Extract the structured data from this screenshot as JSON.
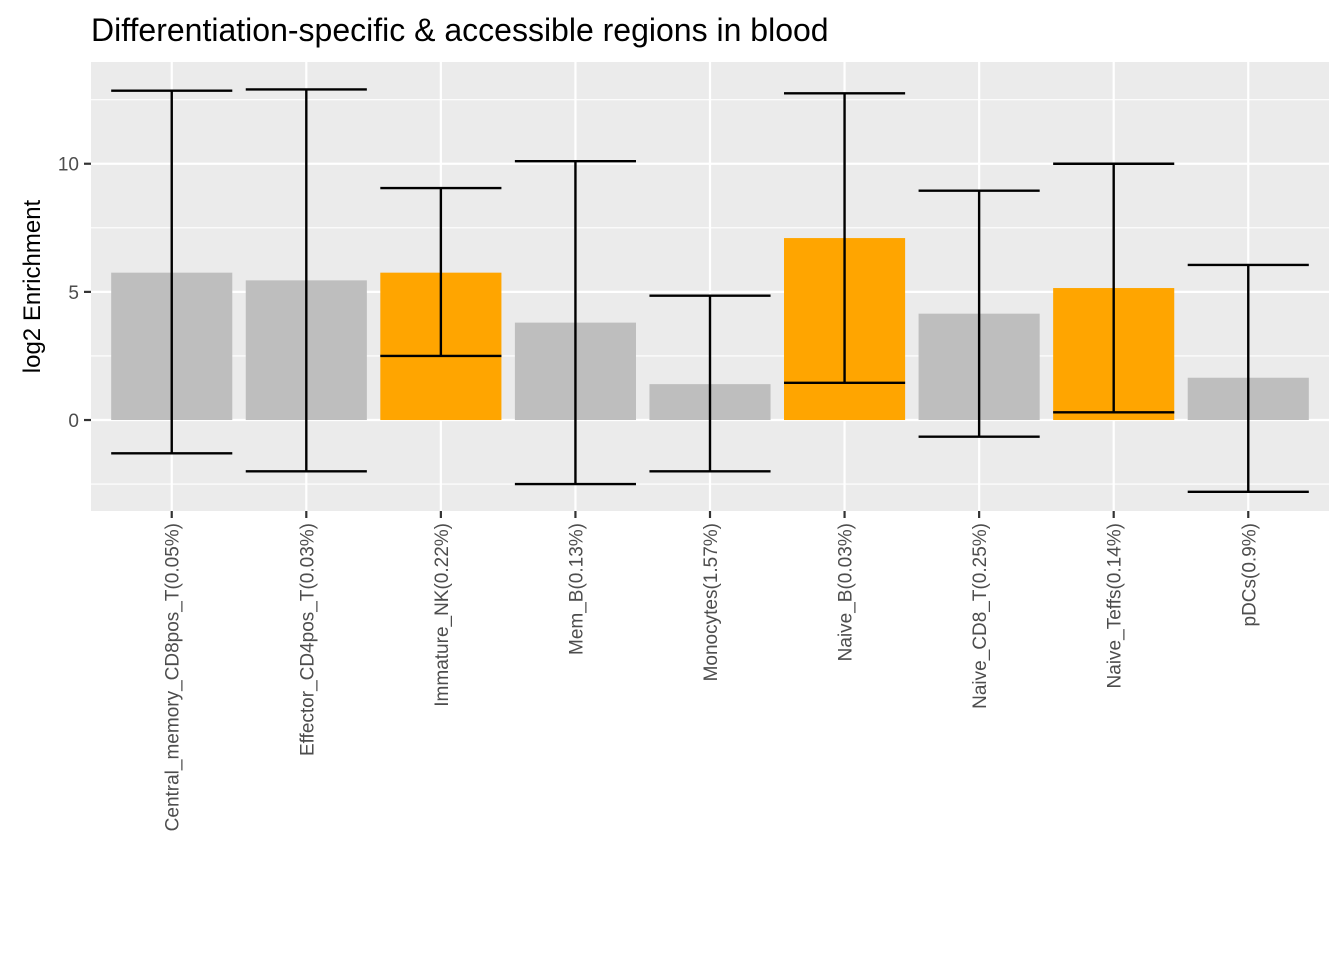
{
  "chart_data": {
    "type": "bar",
    "title": "Differentiation-specific & accessible regions in blood",
    "xlabel": "",
    "ylabel": "log2 Enrichment",
    "ylim": [
      -3.55,
      13.97
    ],
    "yticks": [
      0,
      5,
      10
    ],
    "grid": true,
    "legend": "none",
    "colors": {
      "panel_bg": "#ebebeb",
      "grid": "#ffffff",
      "bar_default": "#bebebe",
      "bar_highlight": "#ffa500",
      "errorbar": "#000000"
    },
    "categories": [
      "Central_memory_CD8pos_T(0.05%)",
      "Effector_CD4pos_T(0.03%)",
      "Immature_NK(0.22%)",
      "Mem_B(0.13%)",
      "Monocytes(1.57%)",
      "Naive_B(0.03%)",
      "Naive_CD8_T(0.25%)",
      "Naive_Teffs(0.14%)",
      "pDCs(0.9%)"
    ],
    "values": [
      5.75,
      5.45,
      5.75,
      3.8,
      1.4,
      7.1,
      4.15,
      5.15,
      1.65
    ],
    "error_low": [
      -1.3,
      -2.0,
      2.5,
      -2.5,
      -2.0,
      1.45,
      -0.65,
      0.3,
      -2.8
    ],
    "error_high": [
      12.85,
      12.9,
      9.05,
      10.1,
      4.85,
      12.75,
      8.95,
      10.0,
      6.05
    ],
    "highlighted": [
      false,
      false,
      true,
      false,
      false,
      true,
      false,
      true,
      false
    ]
  }
}
